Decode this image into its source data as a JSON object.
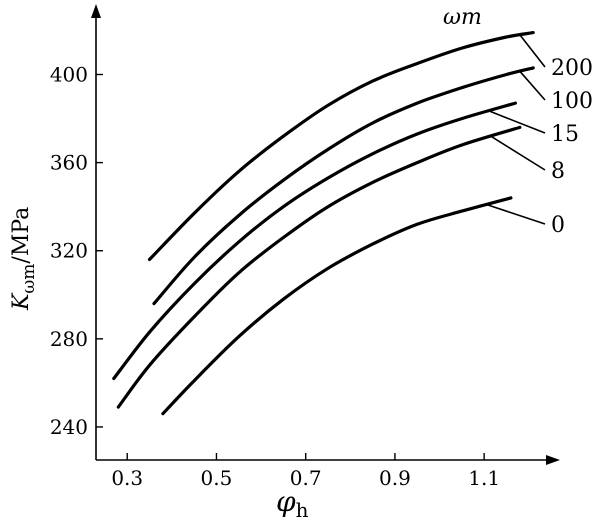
{
  "chart_data": {
    "type": "line",
    "title": "",
    "xlabel": "φ",
    "xlabel_sub": "h",
    "ylabel": "K",
    "ylabel_sub": "ωm",
    "ylabel_unit": "/MPa",
    "xlim": [
      0.23,
      1.27
    ],
    "ylim": [
      225,
      432
    ],
    "x_ticks": [
      0.3,
      0.5,
      0.7,
      0.9,
      1.1
    ],
    "x_tick_labels": [
      "0.3",
      "0.5",
      "0.7",
      "0.9",
      "1.1"
    ],
    "y_ticks": [
      240,
      280,
      320,
      360,
      400
    ],
    "y_tick_labels": [
      "240",
      "280",
      "320",
      "360",
      "400"
    ],
    "legend_title": "ωm",
    "grid": false,
    "series": [
      {
        "name": "200",
        "x": [
          0.35,
          0.45,
          0.55,
          0.65,
          0.75,
          0.85,
          0.95,
          1.05,
          1.15,
          1.21
        ],
        "values": [
          316,
          337,
          356,
          372,
          386,
          397,
          405,
          412,
          417,
          419
        ]
      },
      {
        "name": "100",
        "x": [
          0.36,
          0.45,
          0.55,
          0.65,
          0.75,
          0.85,
          0.95,
          1.05,
          1.15,
          1.21
        ],
        "values": [
          296,
          317,
          336,
          352,
          366,
          378,
          387,
          394,
          400,
          403
        ]
      },
      {
        "name": "15",
        "x": [
          0.27,
          0.35,
          0.45,
          0.55,
          0.65,
          0.75,
          0.85,
          0.95,
          1.05,
          1.17
        ],
        "values": [
          262,
          283,
          305,
          324,
          340,
          353,
          364,
          373,
          380,
          387
        ]
      },
      {
        "name": "8",
        "x": [
          0.28,
          0.35,
          0.45,
          0.55,
          0.65,
          0.75,
          0.85,
          0.95,
          1.05,
          1.18
        ],
        "values": [
          249,
          268,
          290,
          310,
          326,
          340,
          351,
          360,
          368,
          376
        ]
      },
      {
        "name": "0",
        "x": [
          0.38,
          0.45,
          0.55,
          0.65,
          0.75,
          0.85,
          0.95,
          1.05,
          1.16
        ],
        "values": [
          246,
          261,
          281,
          298,
          312,
          323,
          332,
          338,
          344
        ]
      }
    ]
  }
}
